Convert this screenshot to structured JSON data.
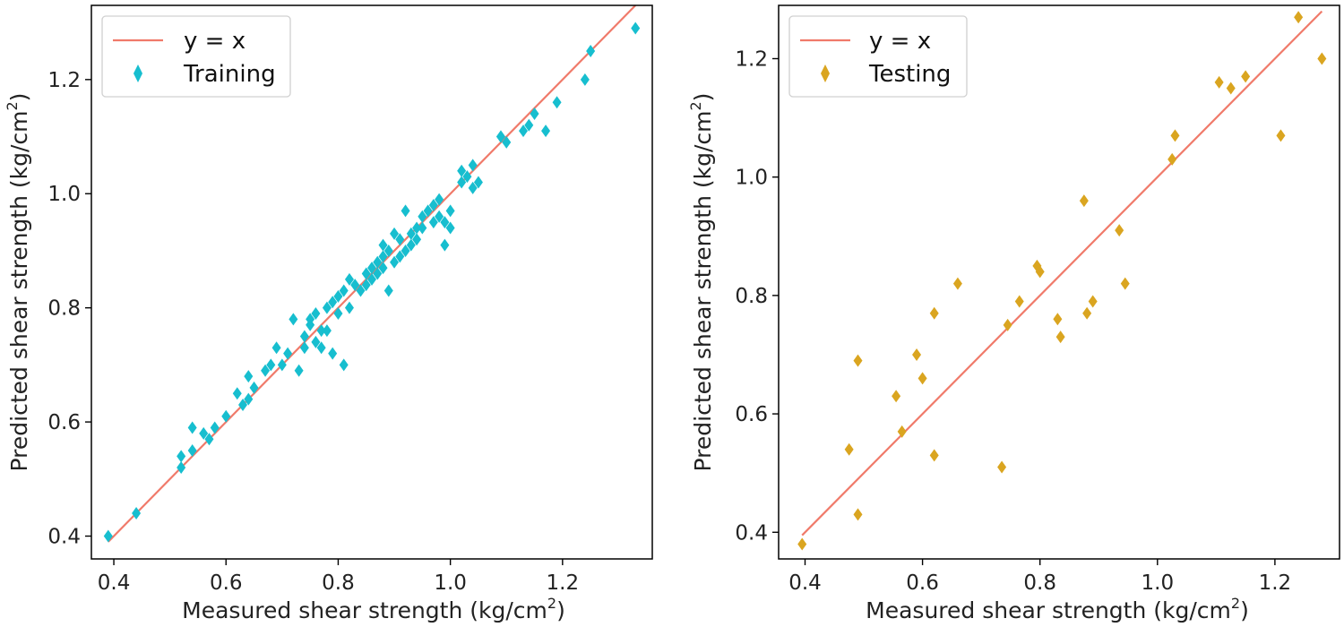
{
  "chart_data": [
    {
      "type": "scatter",
      "panel": "left",
      "xlabel": "Measured shear strength (kg/cm",
      "ylabel": "Predicted shear strength (kg/cm",
      "unit_superscript": "2",
      "unit_close": ")",
      "xlim": [
        0.36,
        1.36
      ],
      "ylim": [
        0.36,
        1.33
      ],
      "xticks": [
        0.4,
        0.6,
        0.8,
        1.0,
        1.2
      ],
      "xtick_labels": [
        "0.4",
        "0.6",
        "0.8",
        "1.0",
        "1.2"
      ],
      "yticks": [
        0.4,
        0.6,
        0.8,
        1.0,
        1.2
      ],
      "ytick_labels": [
        "0.4",
        "0.6",
        "0.8",
        "1.0",
        "1.2"
      ],
      "legend": [
        "y = x",
        "Training"
      ],
      "legend_position": "upper-left",
      "line": {
        "name": "y = x",
        "x": [
          0.39,
          1.33
        ],
        "y": [
          0.39,
          1.33
        ],
        "color": "#f07a6a"
      },
      "series": [
        {
          "name": "Training",
          "color": "#17becf",
          "marker": "diamond",
          "points": [
            [
              0.39,
              0.4
            ],
            [
              0.44,
              0.44
            ],
            [
              0.52,
              0.52
            ],
            [
              0.52,
              0.54
            ],
            [
              0.54,
              0.55
            ],
            [
              0.54,
              0.59
            ],
            [
              0.56,
              0.58
            ],
            [
              0.57,
              0.57
            ],
            [
              0.58,
              0.59
            ],
            [
              0.6,
              0.61
            ],
            [
              0.62,
              0.65
            ],
            [
              0.63,
              0.63
            ],
            [
              0.64,
              0.64
            ],
            [
              0.64,
              0.68
            ],
            [
              0.65,
              0.66
            ],
            [
              0.67,
              0.69
            ],
            [
              0.68,
              0.7
            ],
            [
              0.69,
              0.73
            ],
            [
              0.7,
              0.7
            ],
            [
              0.71,
              0.72
            ],
            [
              0.72,
              0.78
            ],
            [
              0.73,
              0.69
            ],
            [
              0.74,
              0.75
            ],
            [
              0.74,
              0.73
            ],
            [
              0.75,
              0.77
            ],
            [
              0.75,
              0.78
            ],
            [
              0.76,
              0.79
            ],
            [
              0.76,
              0.74
            ],
            [
              0.77,
              0.73
            ],
            [
              0.77,
              0.76
            ],
            [
              0.78,
              0.8
            ],
            [
              0.78,
              0.76
            ],
            [
              0.79,
              0.81
            ],
            [
              0.79,
              0.72
            ],
            [
              0.8,
              0.79
            ],
            [
              0.8,
              0.82
            ],
            [
              0.81,
              0.7
            ],
            [
              0.81,
              0.83
            ],
            [
              0.82,
              0.85
            ],
            [
              0.82,
              0.8
            ],
            [
              0.83,
              0.84
            ],
            [
              0.84,
              0.83
            ],
            [
              0.85,
              0.86
            ],
            [
              0.85,
              0.84
            ],
            [
              0.86,
              0.87
            ],
            [
              0.86,
              0.85
            ],
            [
              0.87,
              0.88
            ],
            [
              0.87,
              0.86
            ],
            [
              0.88,
              0.89
            ],
            [
              0.88,
              0.87
            ],
            [
              0.88,
              0.91
            ],
            [
              0.89,
              0.83
            ],
            [
              0.89,
              0.9
            ],
            [
              0.9,
              0.88
            ],
            [
              0.9,
              0.93
            ],
            [
              0.91,
              0.92
            ],
            [
              0.91,
              0.89
            ],
            [
              0.92,
              0.97
            ],
            [
              0.92,
              0.9
            ],
            [
              0.93,
              0.93
            ],
            [
              0.93,
              0.91
            ],
            [
              0.94,
              0.94
            ],
            [
              0.94,
              0.92
            ],
            [
              0.95,
              0.96
            ],
            [
              0.95,
              0.94
            ],
            [
              0.96,
              0.97
            ],
            [
              0.97,
              0.95
            ],
            [
              0.97,
              0.98
            ],
            [
              0.98,
              0.96
            ],
            [
              0.98,
              0.99
            ],
            [
              0.99,
              0.91
            ],
            [
              0.99,
              0.95
            ],
            [
              1.0,
              0.97
            ],
            [
              1.0,
              0.94
            ],
            [
              1.02,
              1.02
            ],
            [
              1.02,
              1.04
            ],
            [
              1.03,
              1.03
            ],
            [
              1.04,
              1.01
            ],
            [
              1.04,
              1.05
            ],
            [
              1.05,
              1.02
            ],
            [
              1.09,
              1.1
            ],
            [
              1.09,
              1.1
            ],
            [
              1.1,
              1.09
            ],
            [
              1.13,
              1.11
            ],
            [
              1.14,
              1.12
            ],
            [
              1.15,
              1.14
            ],
            [
              1.17,
              1.11
            ],
            [
              1.19,
              1.16
            ],
            [
              1.24,
              1.2
            ],
            [
              1.25,
              1.25
            ],
            [
              1.33,
              1.29
            ]
          ]
        }
      ]
    },
    {
      "type": "scatter",
      "panel": "right",
      "xlabel": "Measured shear strength (kg/cm",
      "ylabel": "Predicted shear strength (kg/cm",
      "unit_superscript": "2",
      "unit_close": ")",
      "xlim": [
        0.355,
        1.31
      ],
      "ylim": [
        0.355,
        1.29
      ],
      "xticks": [
        0.4,
        0.6,
        0.8,
        1.0,
        1.2
      ],
      "xtick_labels": [
        "0.4",
        "0.6",
        "0.8",
        "1.0",
        "1.2"
      ],
      "yticks": [
        0.4,
        0.6,
        0.8,
        1.0,
        1.2
      ],
      "ytick_labels": [
        "0.4",
        "0.6",
        "0.8",
        "1.0",
        "1.2"
      ],
      "legend": [
        "y = x",
        "Testing"
      ],
      "legend_position": "upper-left",
      "line": {
        "name": "y = x",
        "x": [
          0.395,
          1.28
        ],
        "y": [
          0.395,
          1.28
        ],
        "color": "#f07a6a"
      },
      "series": [
        {
          "name": "Testing",
          "color": "#daa520",
          "marker": "diamond",
          "points": [
            [
              0.395,
              0.38
            ],
            [
              0.475,
              0.54
            ],
            [
              0.49,
              0.43
            ],
            [
              0.49,
              0.69
            ],
            [
              0.555,
              0.63
            ],
            [
              0.565,
              0.57
            ],
            [
              0.59,
              0.7
            ],
            [
              0.6,
              0.66
            ],
            [
              0.62,
              0.53
            ],
            [
              0.62,
              0.77
            ],
            [
              0.66,
              0.82
            ],
            [
              0.735,
              0.51
            ],
            [
              0.745,
              0.75
            ],
            [
              0.765,
              0.79
            ],
            [
              0.795,
              0.85
            ],
            [
              0.8,
              0.84
            ],
            [
              0.83,
              0.76
            ],
            [
              0.835,
              0.73
            ],
            [
              0.875,
              0.96
            ],
            [
              0.88,
              0.77
            ],
            [
              0.89,
              0.79
            ],
            [
              0.935,
              0.91
            ],
            [
              0.945,
              0.82
            ],
            [
              1.025,
              1.03
            ],
            [
              1.03,
              1.07
            ],
            [
              1.105,
              1.16
            ],
            [
              1.125,
              1.15
            ],
            [
              1.15,
              1.17
            ],
            [
              1.21,
              1.07
            ],
            [
              1.24,
              1.27
            ],
            [
              1.28,
              1.2
            ]
          ]
        }
      ]
    }
  ]
}
